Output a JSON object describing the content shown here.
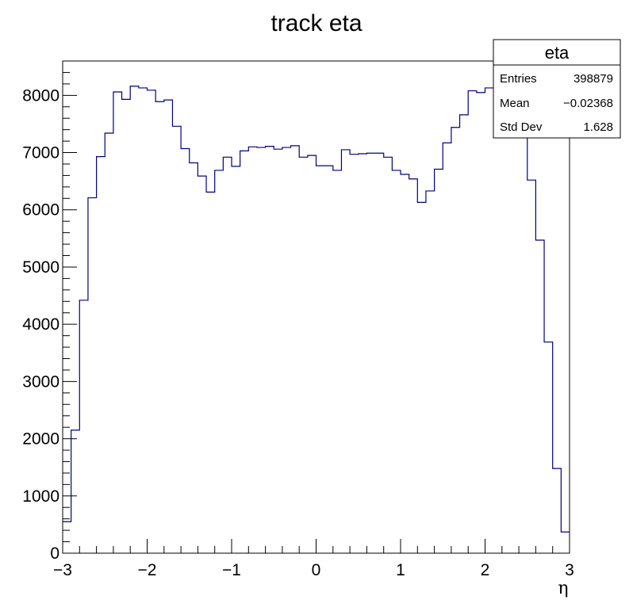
{
  "chart_data": {
    "type": "histogram",
    "title": "track eta",
    "xlabel": "η",
    "ylabel": "",
    "xlim": [
      -3,
      3
    ],
    "ylim": [
      0,
      8600
    ],
    "x_ticks": [
      -3,
      -2,
      -1,
      0,
      1,
      2,
      3
    ],
    "x_tick_labels": [
      "−3",
      "−2",
      "−1",
      "0",
      "1",
      "2",
      "3"
    ],
    "y_ticks": [
      0,
      1000,
      2000,
      3000,
      4000,
      5000,
      6000,
      7000,
      8000
    ],
    "y_tick_labels": [
      "0",
      "1000",
      "2000",
      "3000",
      "4000",
      "5000",
      "6000",
      "7000",
      "8000"
    ],
    "bin_edges_start": -3,
    "bin_width": 0.1,
    "values": [
      550,
      2150,
      4420,
      6210,
      6930,
      7340,
      8060,
      7930,
      8160,
      8130,
      8090,
      7890,
      7920,
      7460,
      7070,
      6820,
      6590,
      6310,
      6690,
      6920,
      6760,
      7030,
      7100,
      7090,
      7110,
      7060,
      7090,
      7120,
      6920,
      6950,
      6770,
      6770,
      6690,
      7050,
      6970,
      6980,
      6990,
      6990,
      6920,
      6690,
      6620,
      6540,
      6130,
      6330,
      6710,
      7170,
      7440,
      7660,
      8080,
      8050,
      8130,
      8120,
      8100,
      8000,
      7780,
      6520,
      5470,
      3690,
      1480,
      370
    ],
    "line_color": "#00007f",
    "stats_box": {
      "title": "eta",
      "rows": [
        {
          "label": "Entries",
          "value": "398879"
        },
        {
          "label": "Mean",
          "value": "−0.02368"
        },
        {
          "label": "Std Dev",
          "value": "1.628"
        }
      ]
    }
  }
}
